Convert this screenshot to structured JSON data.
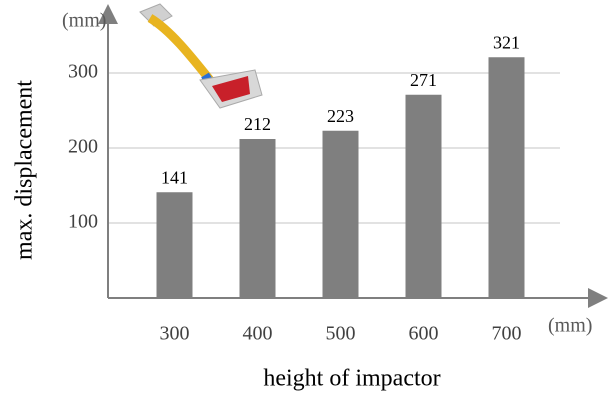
{
  "chart_data": {
    "type": "bar",
    "y_label": "max. displacement",
    "x_label": "height of impactor",
    "y_unit": "(mm)",
    "x_unit": "(mm)",
    "categories": [
      "300",
      "400",
      "500",
      "600",
      "700"
    ],
    "values": [
      141,
      212,
      223,
      271,
      321
    ],
    "color": "#7f7f7f",
    "ylim": [
      0,
      380
    ],
    "yticks": [
      100,
      200,
      300
    ],
    "grid": true
  }
}
